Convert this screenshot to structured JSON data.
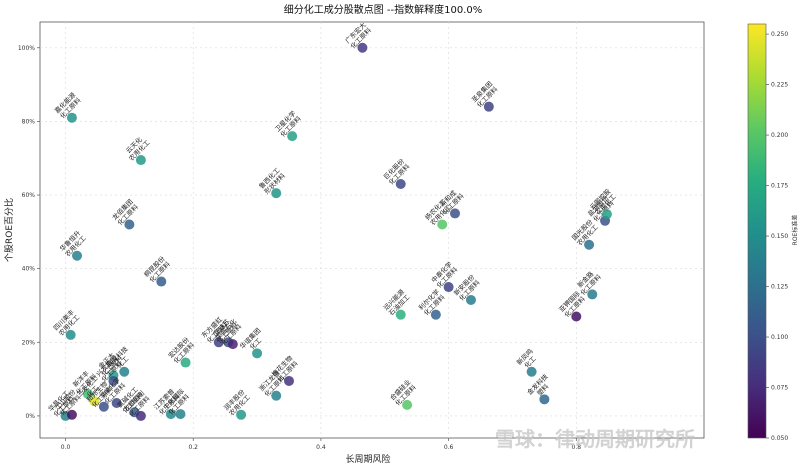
{
  "chart_data": {
    "type": "scatter",
    "title": "细分化工成分股散点图 --指数解释度100.0%",
    "xlabel": "长周期风险",
    "ylabel": "个股ROE百分比",
    "xlim": [
      -0.04,
      1.0
    ],
    "ylim": [
      -0.06,
      1.07
    ],
    "x_ticks": [
      0.0,
      0.2,
      0.4,
      0.6,
      0.8
    ],
    "x_tick_labels": [
      "0.0",
      "0.2",
      "0.4",
      "0.6",
      "0.8"
    ],
    "y_ticks": [
      0.0,
      0.2,
      0.4,
      0.6,
      0.8,
      1.0
    ],
    "y_tick_labels": [
      "0%",
      "20%",
      "40%",
      "60%",
      "80%",
      "100%"
    ],
    "grid": true,
    "colorbar": {
      "label": "ROE标准差",
      "min": 0.05,
      "max": 0.255,
      "ticks": [
        0.05,
        0.075,
        0.1,
        0.125,
        0.15,
        0.175,
        0.2,
        0.225,
        0.25
      ],
      "tick_labels": [
        "0.050",
        "0.075",
        "0.100",
        "0.125",
        "0.150",
        "0.175",
        "0.200",
        "0.225",
        "0.250"
      ],
      "colormap": "viridis"
    },
    "points": [
      {
        "x": 0.465,
        "y": 1.0,
        "c": 0.085,
        "label": "广东宏大\n化工原料"
      },
      {
        "x": 0.663,
        "y": 0.84,
        "c": 0.09,
        "label": "圣泉集团\n化工原料"
      },
      {
        "x": 0.01,
        "y": 0.81,
        "c": 0.155,
        "label": "嘉化能源\n化工原料"
      },
      {
        "x": 0.118,
        "y": 0.695,
        "c": 0.16,
        "label": "云天化\n农用化工"
      },
      {
        "x": 0.355,
        "y": 0.76,
        "c": 0.165,
        "label": "卫星化学\n化工原料"
      },
      {
        "x": 0.33,
        "y": 0.605,
        "c": 0.155,
        "label": "鲁西化工\n形状材料"
      },
      {
        "x": 0.525,
        "y": 0.63,
        "c": 0.095,
        "label": "巨化股份\n化工原料"
      },
      {
        "x": 0.59,
        "y": 0.52,
        "c": 0.2,
        "label": "扬农化工\n农用化工"
      },
      {
        "x": 0.61,
        "y": 0.55,
        "c": 0.1,
        "label": "新和成\n化工原料"
      },
      {
        "x": 0.1,
        "y": 0.52,
        "c": 0.115,
        "label": "龙佰集团\n化工原料"
      },
      {
        "x": 0.018,
        "y": 0.435,
        "c": 0.14,
        "label": "华鲁恒升\n农用化工"
      },
      {
        "x": 0.15,
        "y": 0.365,
        "c": 0.11,
        "label": "桐昆股份\n化工原料"
      },
      {
        "x": 0.82,
        "y": 0.465,
        "c": 0.125,
        "label": "国光股份\n农用化工"
      },
      {
        "x": 0.845,
        "y": 0.53,
        "c": 0.1,
        "label": "盐湖股份\n化工原料"
      },
      {
        "x": 0.848,
        "y": 0.548,
        "c": 0.165,
        "label": "云图控股\n农用化工"
      },
      {
        "x": 0.525,
        "y": 0.275,
        "c": 0.18,
        "label": "远兴能源\n石油加工"
      },
      {
        "x": 0.58,
        "y": 0.275,
        "c": 0.115,
        "label": "利尔化学\n化工原料"
      },
      {
        "x": 0.6,
        "y": 0.35,
        "c": 0.09,
        "label": "中泰化学\n化工原料"
      },
      {
        "x": 0.635,
        "y": 0.315,
        "c": 0.135,
        "label": "新安股份\n化工原料"
      },
      {
        "x": 0.825,
        "y": 0.33,
        "c": 0.135,
        "label": "新金路\n化工原料"
      },
      {
        "x": 0.8,
        "y": 0.27,
        "c": 0.06,
        "label": "亚钾国际\n化工原料"
      },
      {
        "x": 0.008,
        "y": 0.22,
        "c": 0.15,
        "label": "四川美丰\n农用化工"
      },
      {
        "x": 0.075,
        "y": 0.11,
        "c": 0.16,
        "label": "金正大\n化工原料"
      },
      {
        "x": 0.075,
        "y": 0.095,
        "c": 0.1,
        "label": "兴发集团\n化工原料"
      },
      {
        "x": 0.092,
        "y": 0.12,
        "c": 0.14,
        "label": "联化科技\n化工"
      },
      {
        "x": 0.035,
        "y": 0.06,
        "c": 0.19,
        "label": "新洋丰\n化工原料"
      },
      {
        "x": 0.045,
        "y": 0.04,
        "c": 0.245,
        "label": "三友化工\n化工"
      },
      {
        "x": 0.06,
        "y": 0.025,
        "c": 0.1,
        "label": "和邦生物\n化工原料"
      },
      {
        "x": 0.08,
        "y": 0.035,
        "c": 0.095,
        "label": "华峰化学\n化工原料"
      },
      {
        "x": 0.108,
        "y": 0.01,
        "c": 0.11,
        "label": "氯碱化工\n化工原料"
      },
      {
        "x": 0.118,
        "y": 0.0,
        "c": 0.075,
        "label": "龙蟒佰利\n化工原料"
      },
      {
        "x": 0.0,
        "y": 0.0,
        "c": 0.14,
        "label": "华昌化工\n化工原料"
      },
      {
        "x": 0.01,
        "y": 0.003,
        "c": 0.06,
        "label": "江山股份\n化工原料"
      },
      {
        "x": 0.188,
        "y": 0.145,
        "c": 0.175,
        "label": "宏达股份\n化工原料"
      },
      {
        "x": 0.165,
        "y": 0.005,
        "c": 0.145,
        "label": "江苏索普\n化工原料"
      },
      {
        "x": 0.18,
        "y": 0.005,
        "c": 0.14,
        "label": "中化国际\n化工原料"
      },
      {
        "x": 0.24,
        "y": 0.2,
        "c": 0.09,
        "label": "东方盛虹\n化工原料"
      },
      {
        "x": 0.255,
        "y": 0.2,
        "c": 0.1,
        "label": "安迪苏\n化工原料"
      },
      {
        "x": 0.262,
        "y": 0.195,
        "c": 0.07,
        "label": "荣盛石化\n化工原料"
      },
      {
        "x": 0.3,
        "y": 0.17,
        "c": 0.155,
        "label": "华谊集团\n化工"
      },
      {
        "x": 0.33,
        "y": 0.055,
        "c": 0.14,
        "label": "浙江龙盛\n化工原料"
      },
      {
        "x": 0.35,
        "y": 0.095,
        "c": 0.08,
        "label": "梅花生物\n化工原料"
      },
      {
        "x": 0.275,
        "y": 0.003,
        "c": 0.16,
        "label": "润丰股份\n农用化工"
      },
      {
        "x": 0.535,
        "y": 0.03,
        "c": 0.2,
        "label": "合盛硅业\n化工原料"
      },
      {
        "x": 0.73,
        "y": 0.12,
        "c": 0.135,
        "label": "新凤鸣\n化工"
      },
      {
        "x": 0.75,
        "y": 0.045,
        "c": 0.12,
        "label": "金发科技\n塑料"
      }
    ]
  },
  "watermark": {
    "text": "雪球：律动周期研究所"
  }
}
